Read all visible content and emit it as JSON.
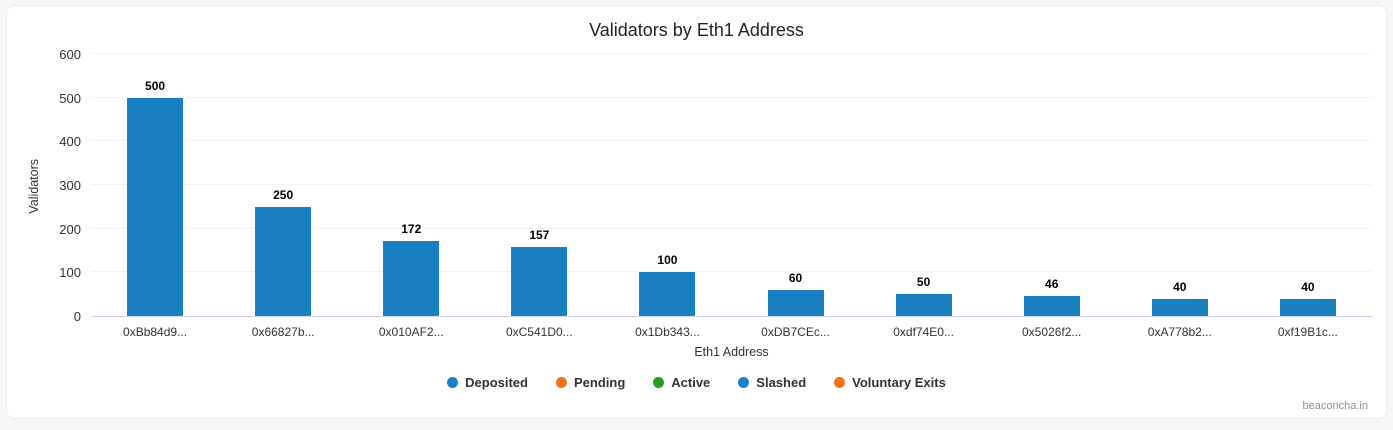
{
  "chart_data": {
    "type": "bar",
    "title": "Validators by Eth1 Address",
    "xlabel": "Eth1 Address",
    "ylabel": "Validators",
    "categories": [
      "0xBb84d9...",
      "0x66827b...",
      "0x010AF2...",
      "0xC541D0...",
      "0x1Db343...",
      "0xDB7CEc...",
      "0xdf74E0...",
      "0x5026f2...",
      "0xA778b2...",
      "0xf19B1c..."
    ],
    "values": [
      500,
      250,
      172,
      157,
      100,
      60,
      50,
      46,
      40,
      40
    ],
    "ylim": [
      0,
      600
    ],
    "ytick_step": 100,
    "bar_color": "#1b80c2",
    "grid": false,
    "legend_position": "bottom",
    "legend": [
      {
        "label": "Deposited",
        "color": "#1b80c2"
      },
      {
        "label": "Pending",
        "color": "#f2711c"
      },
      {
        "label": "Active",
        "color": "#21a121"
      },
      {
        "label": "Slashed",
        "color": "#1b80c2"
      },
      {
        "label": "Voluntary Exits",
        "color": "#f2711c"
      }
    ]
  },
  "watermark": {
    "text": "beaconcha.in"
  }
}
